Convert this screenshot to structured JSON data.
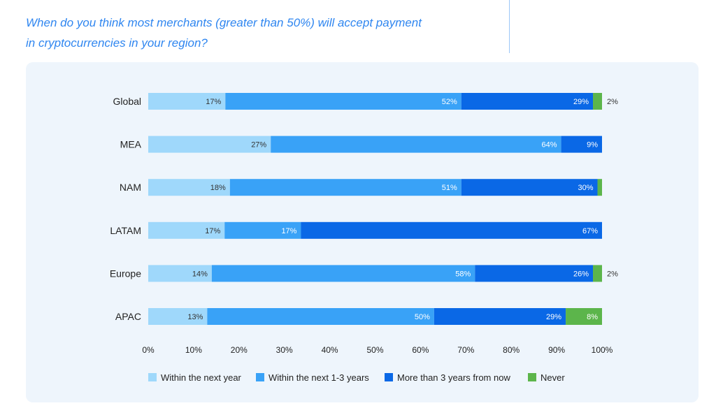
{
  "question": {
    "line1": "When do you think most merchants (greater than 50%) will accept payment",
    "line2": "in cryptocurrencies in your region?"
  },
  "chart_data": {
    "type": "bar",
    "orientation": "horizontal",
    "stacked": true,
    "categories": [
      "Global",
      "MEA",
      "NAM",
      "LATAM",
      "Europe",
      "APAC"
    ],
    "series": [
      {
        "name": "Within the next year",
        "color": "#9fd8fb",
        "values": [
          17,
          27,
          18,
          17,
          14,
          13
        ],
        "labels": [
          "17%",
          "27%",
          "18%",
          "17%",
          "14%",
          "13%"
        ]
      },
      {
        "name": "Within the next 1-3 years",
        "color": "#39a2f7",
        "values": [
          52,
          64,
          51,
          17,
          58,
          50
        ],
        "labels": [
          "52%",
          "64%",
          "51%",
          "17%",
          "58%",
          "50%"
        ]
      },
      {
        "name": "More than 3 years from now",
        "color": "#0a68e6",
        "values": [
          29,
          9,
          30,
          67,
          26,
          29
        ],
        "labels": [
          "29%",
          "9%",
          "30%",
          "67%",
          "26%",
          "29%"
        ]
      },
      {
        "name": "Never",
        "color": "#5cb54b",
        "values": [
          2,
          0,
          1,
          0,
          2,
          8
        ],
        "labels": [
          "2%",
          "",
          "",
          "",
          "2%",
          "8%"
        ]
      }
    ],
    "xlim": [
      0,
      100
    ],
    "x_ticks": [
      "0%",
      "10%",
      "20%",
      "30%",
      "40%",
      "50%",
      "60%",
      "70%",
      "80%",
      "90%",
      "100%"
    ],
    "legend": "bottom",
    "grid": false
  }
}
